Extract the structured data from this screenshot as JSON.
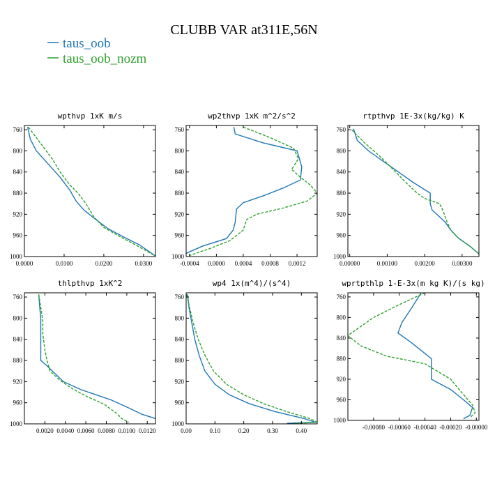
{
  "figure": {
    "title": "CLUBB VAR at311E,56N",
    "legend": [
      {
        "name": "taus_oob",
        "color": "#1f77b4"
      },
      {
        "name": "taus_oob_nozm",
        "color": "#2ca02c"
      }
    ]
  },
  "chart_data": [
    {
      "type": "line",
      "title": "wpthvp  1xK m/s",
      "xlim": [
        0,
        0.033
      ],
      "ylim": [
        1000,
        752
      ],
      "xticks": [
        0,
        0.01,
        0.02,
        0.03
      ],
      "xtick_labels": [
        "0.0000",
        "0.0100",
        "0.0200",
        "0.0300"
      ],
      "yticks": [
        760,
        800,
        840,
        880,
        920,
        960,
        1000
      ],
      "ytick_labels": [
        "760",
        "800",
        "840",
        "880",
        "920",
        "960",
        "1000"
      ],
      "series": [
        {
          "name": "taus_oob",
          "color": "#1f77b4",
          "dash": "",
          "points": [
            [
              0.0008,
              755
            ],
            [
              0.0015,
              778
            ],
            [
              0.003,
              800
            ],
            [
              0.006,
              825
            ],
            [
              0.009,
              850
            ],
            [
              0.0115,
              875
            ],
            [
              0.013,
              895
            ],
            [
              0.015,
              912
            ],
            [
              0.018,
              930
            ],
            [
              0.021,
              947
            ],
            [
              0.025,
              963
            ],
            [
              0.029,
              978
            ],
            [
              0.033,
              999
            ]
          ]
        },
        {
          "name": "taus_oob_nozm",
          "color": "#2ca02c",
          "dash": "4,2",
          "points": [
            [
              0.001,
              755
            ],
            [
              0.003,
              775
            ],
            [
              0.005,
              795
            ],
            [
              0.007,
              815
            ],
            [
              0.009,
              840
            ],
            [
              0.0115,
              865
            ],
            [
              0.0135,
              880
            ],
            [
              0.0155,
              900
            ],
            [
              0.0175,
              925
            ],
            [
              0.02,
              945
            ],
            [
              0.024,
              962
            ],
            [
              0.028,
              978
            ],
            [
              0.033,
              999
            ]
          ]
        }
      ]
    },
    {
      "type": "line",
      "title": "wp2thvp  1xK m^2/s^2",
      "xlim": [
        -0.00045,
        0.0015
      ],
      "ylim": [
        1000,
        752
      ],
      "xticks": [
        -0.0004,
        0,
        0.0004,
        0.0008,
        0.0012
      ],
      "xtick_labels": [
        "-0.0004",
        "0.0000",
        "0.0004",
        "0.0008",
        "0.0012"
      ],
      "yticks": [
        760,
        800,
        840,
        880,
        920,
        960,
        1000
      ],
      "ytick_labels": [
        "760",
        "800",
        "840",
        "880",
        "920",
        "960",
        "1000"
      ],
      "series": [
        {
          "name": "taus_oob",
          "color": "#1f77b4",
          "dash": "",
          "points": [
            [
              0.00026,
              755
            ],
            [
              0.00028,
              768
            ],
            [
              0.0007,
              785
            ],
            [
              0.0012,
              800
            ],
            [
              0.00127,
              830
            ],
            [
              0.00125,
              855
            ],
            [
              0.001,
              870
            ],
            [
              0.0007,
              885
            ],
            [
              0.0004,
              898
            ],
            [
              0.0003,
              910
            ],
            [
              0.00028,
              935
            ],
            [
              0.00025,
              950
            ],
            [
              0.00015,
              966
            ],
            [
              -0.0002,
              980
            ],
            [
              -0.00045,
              994
            ]
          ]
        },
        {
          "name": "taus_oob_nozm",
          "color": "#2ca02c",
          "dash": "4,2",
          "points": [
            [
              0.0004,
              755
            ],
            [
              0.0008,
              775
            ],
            [
              0.00115,
              795
            ],
            [
              0.00122,
              815
            ],
            [
              0.00112,
              835
            ],
            [
              0.00125,
              850
            ],
            [
              0.0014,
              865
            ],
            [
              0.0015,
              880
            ],
            [
              0.00135,
              895
            ],
            [
              0.001,
              908
            ],
            [
              0.0006,
              920
            ],
            [
              0.00045,
              930
            ],
            [
              0.0004,
              950
            ],
            [
              0.0002,
              970
            ],
            [
              -0.0001,
              985
            ],
            [
              -0.0004,
              998
            ]
          ]
        }
      ]
    },
    {
      "type": "line",
      "title": "rtpthvp  1E-3x(kg/kg) K",
      "xlim": [
        -5e-05,
        0.00345
      ],
      "ylim": [
        1000,
        752
      ],
      "xticks": [
        0,
        0.001,
        0.002,
        0.003
      ],
      "xtick_labels": [
        "0.00000",
        "0.00100",
        "0.00200",
        "0.00300"
      ],
      "yticks": [
        760,
        800,
        840,
        880,
        920,
        960,
        1000
      ],
      "ytick_labels": [
        "760",
        "800",
        "840",
        "880",
        "920",
        "960",
        "1000"
      ],
      "series": [
        {
          "name": "taus_oob",
          "color": "#1f77b4",
          "dash": "",
          "points": [
            [
              0.0001,
              758
            ],
            [
              0.0002,
              780
            ],
            [
              0.0005,
              800
            ],
            [
              0.0009,
              820
            ],
            [
              0.0013,
              840
            ],
            [
              0.0017,
              860
            ],
            [
              0.00215,
              880
            ],
            [
              0.00215,
              900
            ],
            [
              0.0022,
              912
            ],
            [
              0.0024,
              925
            ],
            [
              0.00255,
              935
            ],
            [
              0.0027,
              950
            ],
            [
              0.0029,
              965
            ],
            [
              0.0032,
              980
            ],
            [
              0.00345,
              995
            ]
          ]
        },
        {
          "name": "taus_oob_nozm",
          "color": "#2ca02c",
          "dash": "4,2",
          "points": [
            [
              5e-05,
              760
            ],
            [
              0.0004,
              785
            ],
            [
              0.0008,
              810
            ],
            [
              0.0012,
              838
            ],
            [
              0.0015,
              860
            ],
            [
              0.0018,
              880
            ],
            [
              0.002,
              890
            ],
            [
              0.0024,
              900
            ],
            [
              0.0025,
              915
            ],
            [
              0.0026,
              935
            ],
            [
              0.0027,
              950
            ],
            [
              0.0029,
              965
            ],
            [
              0.0032,
              980
            ],
            [
              0.00345,
              995
            ]
          ]
        }
      ]
    },
    {
      "type": "line",
      "title": "thlpthvp  1xK^2",
      "xlim": [
        0,
        0.0128
      ],
      "ylim": [
        1000,
        752
      ],
      "xticks": [
        0.002,
        0.004,
        0.006,
        0.008,
        0.01,
        0.012
      ],
      "xtick_labels": [
        "0.0020",
        "0.0040",
        "0.0060",
        "0.0080",
        "0.0100",
        "0.0120"
      ],
      "yticks": [
        760,
        800,
        840,
        880,
        920,
        960,
        1000
      ],
      "ytick_labels": [
        "760",
        "800",
        "840",
        "880",
        "920",
        "960",
        "1000"
      ],
      "series": [
        {
          "name": "taus_oob",
          "color": "#1f77b4",
          "dash": "",
          "points": [
            [
              0.0014,
              755
            ],
            [
              0.0015,
              780
            ],
            [
              0.0016,
              800
            ],
            [
              0.0016,
              830
            ],
            [
              0.0016,
              860
            ],
            [
              0.0016,
              880
            ],
            [
              0.0022,
              890
            ],
            [
              0.003,
              905
            ],
            [
              0.0038,
              920
            ],
            [
              0.0055,
              935
            ],
            [
              0.007,
              945
            ],
            [
              0.0085,
              955
            ],
            [
              0.0102,
              970
            ],
            [
              0.0115,
              982
            ],
            [
              0.0128,
              990
            ]
          ]
        },
        {
          "name": "taus_oob_nozm",
          "color": "#2ca02c",
          "dash": "4,2",
          "points": [
            [
              0.0014,
              755
            ],
            [
              0.0016,
              780
            ],
            [
              0.0018,
              805
            ],
            [
              0.0018,
              830
            ],
            [
              0.002,
              860
            ],
            [
              0.0022,
              880
            ],
            [
              0.0025,
              900
            ],
            [
              0.0035,
              918
            ],
            [
              0.0048,
              935
            ],
            [
              0.0063,
              950
            ],
            [
              0.0078,
              963
            ],
            [
              0.009,
              980
            ],
            [
              0.0095,
              990
            ],
            [
              0.0102,
              997
            ]
          ]
        }
      ]
    },
    {
      "type": "line",
      "title": "wp4  1x(m^4)/(s^4)",
      "xlim": [
        0,
        0.455
      ],
      "ylim": [
        1000,
        752
      ],
      "xticks": [
        0,
        0.1,
        0.2,
        0.3,
        0.4
      ],
      "xtick_labels": [
        "0.00",
        "0.10",
        "0.20",
        "0.30",
        "0.40"
      ],
      "yticks": [
        760,
        800,
        840,
        880,
        920,
        960,
        1000
      ],
      "ytick_labels": [
        "760",
        "800",
        "840",
        "880",
        "920",
        "960",
        "1000"
      ],
      "series": [
        {
          "name": "taus_oob",
          "color": "#1f77b4",
          "dash": "",
          "points": [
            [
              0.005,
              755
            ],
            [
              0.01,
              780
            ],
            [
              0.02,
              810
            ],
            [
              0.03,
              840
            ],
            [
              0.045,
              870
            ],
            [
              0.065,
              900
            ],
            [
              0.1,
              925
            ],
            [
              0.15,
              945
            ],
            [
              0.22,
              962
            ],
            [
              0.31,
              977
            ],
            [
              0.41,
              990
            ],
            [
              0.45,
              997
            ],
            [
              0.35,
              999
            ]
          ]
        },
        {
          "name": "taus_oob_nozm",
          "color": "#2ca02c",
          "dash": "4,2",
          "points": [
            [
              0.002,
              755
            ],
            [
              0.012,
              780
            ],
            [
              0.025,
              810
            ],
            [
              0.042,
              840
            ],
            [
              0.065,
              870
            ],
            [
              0.095,
              900
            ],
            [
              0.14,
              925
            ],
            [
              0.2,
              945
            ],
            [
              0.27,
              962
            ],
            [
              0.35,
              977
            ],
            [
              0.43,
              990
            ],
            [
              0.455,
              997
            ],
            [
              0.38,
              999
            ]
          ]
        }
      ]
    },
    {
      "type": "line",
      "title": "wprtpthlp  1-E-3x(m kg K)/(s kg)",
      "xlim": [
        -0.001,
        2e-05
      ],
      "ylim": [
        1000,
        752
      ],
      "xticks": [
        -0.0008,
        -0.0006,
        -0.0004,
        -0.0002,
        0
      ],
      "xtick_labels": [
        "-0.00080",
        "-0.00060",
        "-0.00040",
        "-0.00020",
        "-0.00000"
      ],
      "yticks": [
        760,
        800,
        840,
        880,
        920,
        960,
        1000
      ],
      "ytick_labels": [
        "760",
        "800",
        "840",
        "880",
        "920",
        "960",
        "1000"
      ],
      "series": [
        {
          "name": "taus_oob",
          "color": "#1f77b4",
          "dash": "",
          "points": [
            [
              -0.00043,
              752
            ],
            [
              -0.0005,
              780
            ],
            [
              -0.00058,
              810
            ],
            [
              -0.00061,
              830
            ],
            [
              -0.0005,
              850
            ],
            [
              -0.0004,
              870
            ],
            [
              -0.00035,
              880
            ],
            [
              -0.00035,
              920
            ],
            [
              -0.0002,
              940
            ],
            [
              -0.0001,
              960
            ],
            [
              -3e-05,
              975
            ],
            [
              -5e-05,
              990
            ],
            [
              -0.0001,
              997
            ]
          ]
        },
        {
          "name": "taus_oob_nozm",
          "color": "#2ca02c",
          "dash": "4,2",
          "points": [
            [
              -0.0004,
              752
            ],
            [
              -0.0006,
              775
            ],
            [
              -0.0008,
              800
            ],
            [
              -0.001,
              835
            ],
            [
              -0.0009,
              855
            ],
            [
              -0.0007,
              875
            ],
            [
              -0.0004,
              890
            ],
            [
              -0.0002,
              920
            ],
            [
              -0.0001,
              950
            ],
            [
              -3e-05,
              970
            ],
            [
              -1e-05,
              985
            ],
            [
              -5e-05,
              995
            ]
          ]
        }
      ]
    }
  ]
}
